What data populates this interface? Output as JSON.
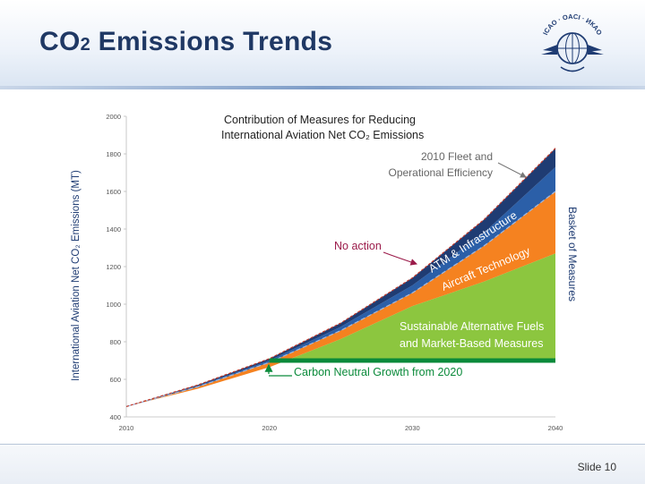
{
  "slide": {
    "title_main": "CO",
    "title_sub": "2",
    "title_rest": " Emissions Trends",
    "number_label": "Slide 10",
    "logo_text": "ICAO · OACI · ИКАО"
  },
  "colors": {
    "title": "#1f3864",
    "green": "#8cc63f",
    "orange": "#f58220",
    "blue": "#2b5fa8",
    "navy": "#1f3c73",
    "neutral_line": "#0a8a3a",
    "red_dash": "#c0392b",
    "axis_text": "#555555"
  },
  "chart_data": {
    "type": "area",
    "title_line1": "Contribution of Measures for Reducing",
    "title_line2": "International Aviation Net CO₂ Emissions",
    "ylabel": "International Aviation Net CO₂ Emissions (MT)",
    "right_label": "Basket of Measures",
    "xlim": [
      2010,
      2040
    ],
    "ylim": [
      400,
      2000
    ],
    "x_ticks": [
      2010,
      2020,
      2030,
      2040
    ],
    "y_ticks": [
      400,
      600,
      800,
      1000,
      1200,
      1400,
      1600,
      1800,
      2000
    ],
    "x": [
      2010,
      2015,
      2020,
      2025,
      2030,
      2035,
      2040
    ],
    "series": [
      {
        "name": "No action",
        "values": [
          455,
          570,
          710,
          900,
          1140,
          1450,
          1830
        ]
      },
      {
        "name": "2010 Fleet and Operational Efficiency",
        "values": [
          455,
          565,
          700,
          880,
          1100,
          1380,
          1730
        ]
      },
      {
        "name": "ATM & Infrastructure",
        "values": [
          455,
          560,
          690,
          860,
          1060,
          1310,
          1600
        ]
      },
      {
        "name": "Aircraft Technology",
        "values": [
          455,
          550,
          665,
          815,
          990,
          1120,
          1270
        ]
      },
      {
        "name": "Carbon Neutral Growth from 2020",
        "values": [
          null,
          null,
          700,
          700,
          700,
          700,
          700
        ]
      }
    ],
    "band_labels": {
      "fleet_line1": "2010 Fleet and",
      "fleet_line2": "Operational Efficiency",
      "atm": "ATM & Infrastructure",
      "aircraft": "Aircraft Technology",
      "fuels_line1": "Sustainable Alternative Fuels",
      "fuels_line2": "and Market-Based Measures",
      "no_action": "No action",
      "neutral": "Carbon Neutral Growth from 2020"
    }
  }
}
